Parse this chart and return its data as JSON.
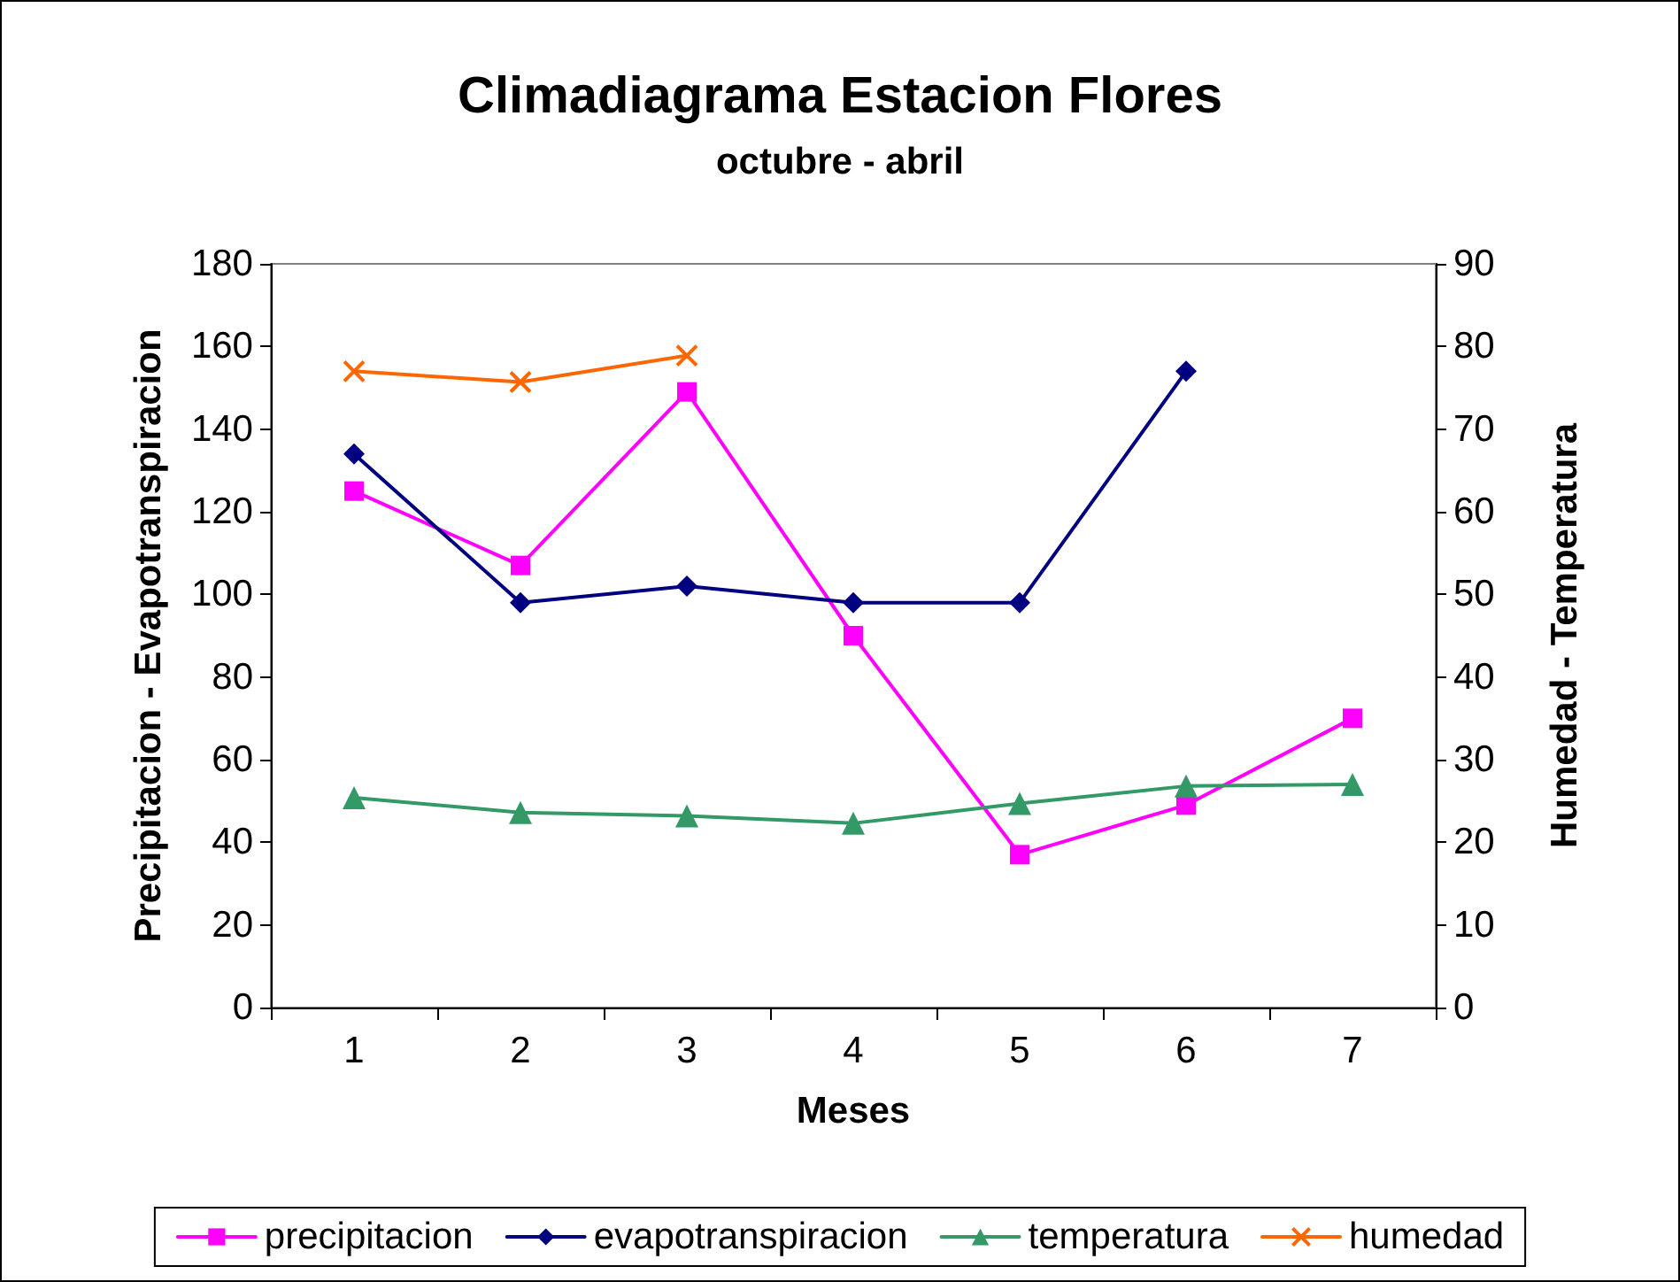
{
  "chart_data": {
    "type": "line",
    "title": "Climadiagrama Estacion Flores",
    "subtitle": "octubre - abril",
    "xlabel": "Meses",
    "ylabel": "Precipitacion - Evapotranspiracion",
    "y2label": "Humedad - Temperatura",
    "categories": [
      "1",
      "2",
      "3",
      "4",
      "5",
      "6",
      "7"
    ],
    "series": [
      {
        "name": "precipitacion",
        "color": "#ff00ff",
        "marker": "square",
        "values": [
          125,
          107,
          149,
          90,
          37,
          49,
          70
        ]
      },
      {
        "name": "evapotranspiracion",
        "color": "#000080",
        "marker": "diamond",
        "values": [
          134,
          98,
          102,
          98,
          98,
          154,
          null
        ]
      },
      {
        "name": "temperatura",
        "color": "#339966",
        "marker": "triangle",
        "axis": "y2",
        "values": [
          25.4,
          23.6,
          23.2,
          22.3,
          24.7,
          26.8,
          27
        ]
      },
      {
        "name": "humedad",
        "color": "#ff6600",
        "marker": "cross",
        "axis": "y2",
        "values": [
          77,
          75.7,
          78.9,
          null,
          null,
          null,
          null
        ]
      }
    ],
    "ylim": [
      0,
      180
    ],
    "yticks": [
      0,
      20,
      40,
      60,
      80,
      100,
      120,
      140,
      160,
      180
    ],
    "y2lim": [
      0,
      90
    ],
    "y2ticks": [
      0,
      10,
      20,
      30,
      40,
      50,
      60,
      70,
      80,
      90
    ],
    "grid": false,
    "legend": "bottom",
    "line_style": "solid"
  }
}
